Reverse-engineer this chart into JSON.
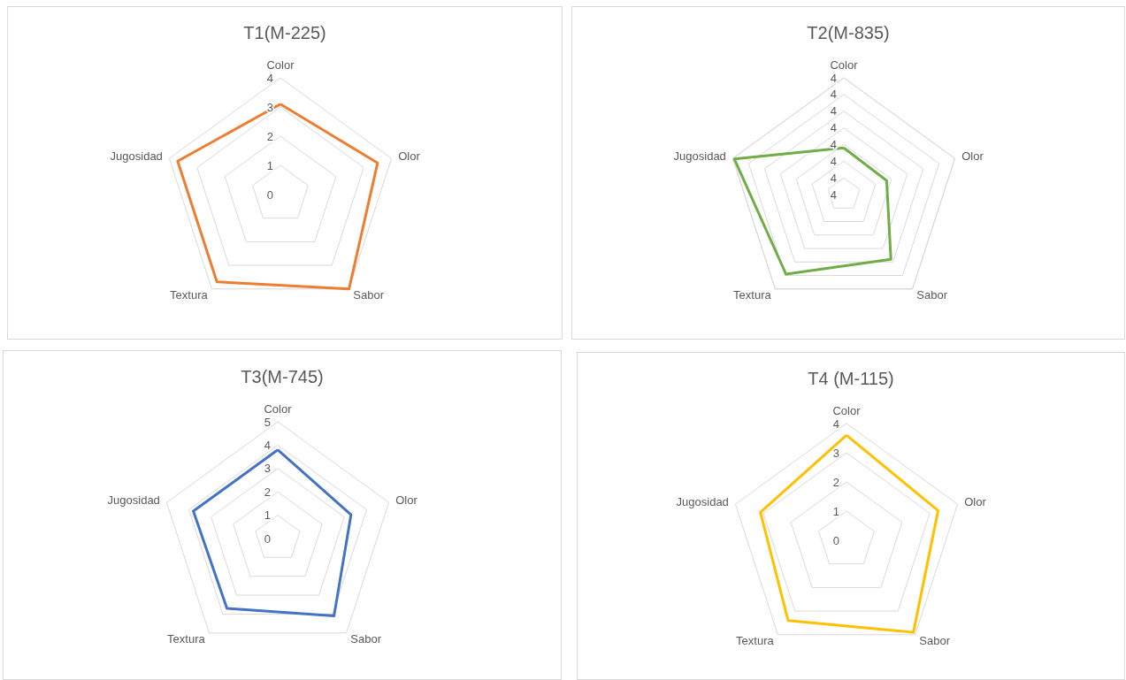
{
  "chart_data": [
    {
      "type": "radar",
      "title": "T1(M-225)",
      "categories": [
        "Color",
        "Olor",
        "Sabor",
        "Textura",
        "Jugosidad"
      ],
      "series": [
        {
          "color": "#ed7d31",
          "values": [
            3.1,
            3.5,
            4.0,
            3.7,
            3.7
          ]
        }
      ],
      "ylim": [
        0,
        4
      ],
      "yticks": [
        0,
        1,
        2,
        3,
        4
      ],
      "grid": true,
      "marker": "none"
    },
    {
      "type": "radar",
      "title": "T2(M-835)",
      "categories": [
        "Color",
        "Olor",
        "Sabor",
        "Textura",
        "Jugosidad"
      ],
      "series": [
        {
          "color": "#70ad47",
          "values": [
            3.78,
            3.77,
            3.98,
            4.09,
            4.19
          ]
        }
      ],
      "ylim": [
        3.5,
        4.2
      ],
      "yticks": [
        {
          "value": 3.5,
          "label": "4"
        },
        {
          "value": 3.6,
          "label": "4"
        },
        {
          "value": 3.7,
          "label": "4"
        },
        {
          "value": 3.8,
          "label": "4"
        },
        {
          "value": 3.9,
          "label": "4"
        },
        {
          "value": 4.0,
          "label": "4"
        },
        {
          "value": 4.1,
          "label": "4"
        },
        {
          "value": 4.2,
          "label": "4"
        }
      ],
      "grid": true,
      "marker": "none"
    },
    {
      "type": "radar",
      "title": "T3(M-745)",
      "categories": [
        "Color",
        "Olor",
        "Sabor",
        "Textura",
        "Jugosidad"
      ],
      "series": [
        {
          "color": "#4472c4",
          "values": [
            3.8,
            3.3,
            4.1,
            3.7,
            3.8
          ]
        }
      ],
      "ylim": [
        0,
        5
      ],
      "yticks": [
        0,
        1,
        2,
        3,
        4,
        5
      ],
      "grid": true,
      "marker": "none"
    },
    {
      "type": "radar",
      "title": "T4 (M-115)",
      "categories": [
        "Color",
        "Olor",
        "Sabor",
        "Textura",
        "Jugosidad"
      ],
      "series": [
        {
          "color": "#ffc000",
          "values": [
            3.6,
            3.3,
            3.9,
            3.4,
            3.1
          ]
        }
      ],
      "ylim": [
        0,
        4
      ],
      "yticks": [
        0,
        1,
        2,
        3,
        4
      ],
      "grid": true,
      "marker": "none"
    }
  ]
}
